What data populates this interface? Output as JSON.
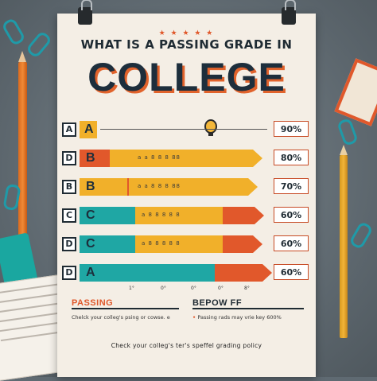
{
  "poster": {
    "stars": "★ ★ ★ ★ ★",
    "title_line1": "WHAT IS A PASSING GRADE IN",
    "title_line2": "COLLEGE"
  },
  "rows": [
    {
      "marker": "A",
      "label": "A",
      "ticks": "",
      "pct": "90%",
      "color_main": "#f1b02a",
      "color_end": "#f1b02a"
    },
    {
      "marker": "D",
      "label": "B",
      "ticks": "a   a    8   8  8   88",
      "pct": "80%",
      "color_main": "#e1582b",
      "color_end": "#f1b02a"
    },
    {
      "marker": "B",
      "label": "B",
      "ticks": "a   a    8   8  8   88",
      "pct": "70%",
      "color_main": "#f1b02a",
      "color_end": "#f1b02a"
    },
    {
      "marker": "C",
      "label": "C",
      "ticks": "a    8     8   8  8  8",
      "pct": "60%",
      "color_main": "#1fa7a4",
      "color_end": "#e1582b"
    },
    {
      "marker": "D",
      "label": "C",
      "ticks": "a    8     8   8  8  8",
      "pct": "60%",
      "color_main": "#1fa7a4",
      "color_end": "#e1582b"
    },
    {
      "marker": "D",
      "label": "A",
      "ticks": "",
      "pct": "60%",
      "color_main": "#1fa7a4",
      "color_end": "#e1582b"
    }
  ],
  "axis_ticks": [
    "1°",
    "0°",
    "0°",
    "0°",
    "8°"
  ],
  "legend": {
    "left_title": "PASSING",
    "right_title": "BEPOW FF",
    "left_text": "Chelck your colleg's psing or cowse. e",
    "right_text": "Passing rads may vrie key 600%",
    "footer": "Check your colleg's ter's speffel grading policy"
  },
  "colors": {
    "orange": "#e1582b",
    "yellow": "#f1b02a",
    "teal": "#1fa7a4",
    "navy": "#1d2e3c"
  }
}
